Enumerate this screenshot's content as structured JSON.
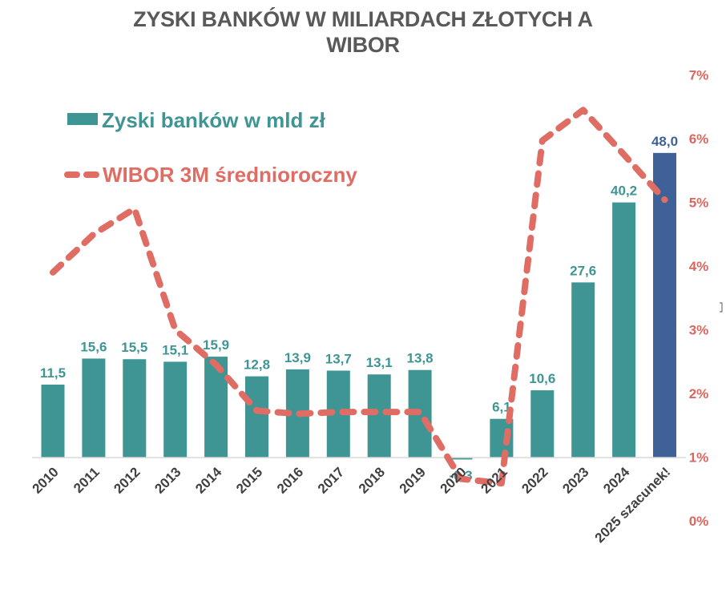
{
  "title": {
    "line1": "ZYSKI BANKÓW W MILIARDACH ZŁOTYCH A",
    "line2": "WIBOR"
  },
  "legend": {
    "bars_label": "Zyski banków w mld zł",
    "line_label": "WIBOR 3M średnioroczny"
  },
  "colors": {
    "bar": "#3f9594",
    "bar_estimate": "#3e6298",
    "line": "#e06d64",
    "right_axis": "#d9675f",
    "title": "#595959",
    "x_labels": "#404040"
  },
  "chart_data": {
    "type": "bar+line",
    "title": "ZYSKI BANKÓW W MILIARDACH ZŁOTYCH A WIBOR",
    "categories": [
      "2010",
      "2011",
      "2012",
      "2013",
      "2014",
      "2015",
      "2016",
      "2017",
      "2018",
      "2019",
      "2020",
      "2021",
      "2022",
      "2023",
      "2024",
      "2025 szacunek!"
    ],
    "series": [
      {
        "name": "Zyski banków w mld zł",
        "type": "bar",
        "axis": "left (hidden)",
        "values": [
          11.5,
          15.6,
          15.5,
          15.1,
          15.9,
          12.8,
          13.9,
          13.7,
          13.1,
          13.8,
          -0.3,
          6.1,
          10.6,
          27.6,
          40.2,
          48.0
        ],
        "labels": [
          "11,5",
          "15,6",
          "15,5",
          "15,1",
          "15,9",
          "12,8",
          "13,9",
          "13,7",
          "13,1",
          "13,8",
          "-0,3",
          "6,1",
          "10,6",
          "27,6",
          "40,2",
          "48,0"
        ]
      },
      {
        "name": "WIBOR 3M średnioroczny",
        "type": "line",
        "style": "dashed",
        "axis": "right",
        "values": [
          3.9,
          4.5,
          4.9,
          3.0,
          2.45,
          1.73,
          1.68,
          1.71,
          1.71,
          1.71,
          0.66,
          0.59,
          5.97,
          6.45,
          5.75,
          5.04
        ]
      }
    ],
    "right_axis": {
      "ticks": [
        "0%",
        "1%",
        "2%",
        "3%",
        "4%",
        "5%",
        "6%",
        "7%"
      ],
      "range": [
        0,
        7
      ]
    },
    "xlabel": "",
    "ylabel": "",
    "legend_position": "top-left",
    "grid": false
  }
}
